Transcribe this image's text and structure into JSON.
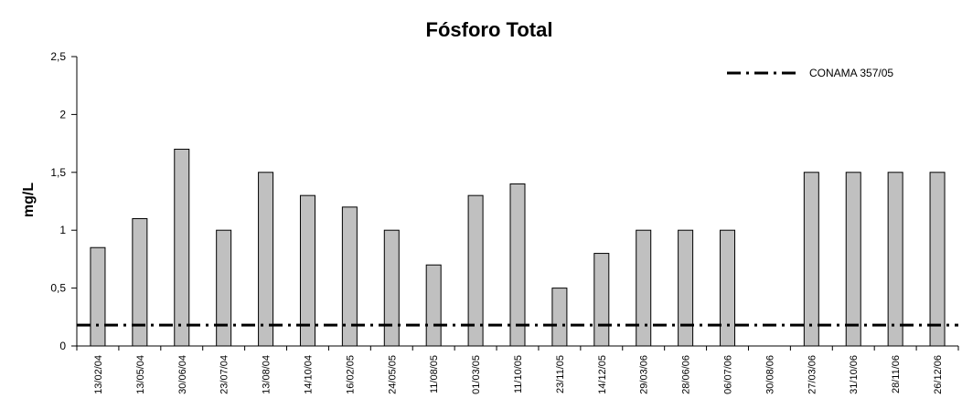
{
  "chart_data": {
    "type": "bar",
    "title": "Fósforo Total",
    "ylabel": "mg/L",
    "xlabel": "",
    "ylim": [
      0,
      2.5
    ],
    "yticks": [
      "0",
      "0,5",
      "1",
      "1,5",
      "2",
      "2,5"
    ],
    "ytick_values": [
      0,
      0.5,
      1,
      1.5,
      2,
      2.5
    ],
    "categories": [
      "13/02/04",
      "13/05/04",
      "30/06/04",
      "23/07/04",
      "13/08/04",
      "14/10/04",
      "16/02/05",
      "24/05/05",
      "11/08/05",
      "01/03/05",
      "11/10/05",
      "23/11/05",
      "14/12/05",
      "29/03/06",
      "28/06/06",
      "06/07/06",
      "30/08/06",
      "27/03/06",
      "31/10/06",
      "28/11/06",
      "26/12/06"
    ],
    "values": [
      0.85,
      1.1,
      1.7,
      1.0,
      1.5,
      1.3,
      1.2,
      1.0,
      0.7,
      1.3,
      1.4,
      0.5,
      0.8,
      1.0,
      1.0,
      1.0,
      0,
      1.5,
      1.5,
      1.5,
      1.5
    ],
    "reference_line": {
      "name": "CONAMA 357/05",
      "value": 0.18
    },
    "grid": false,
    "legend_position": "top-right",
    "colors": {
      "bar_fill": "#c0c0c0",
      "bar_stroke": "#000000",
      "reference_line": "#000000",
      "axis": "#000000"
    }
  }
}
